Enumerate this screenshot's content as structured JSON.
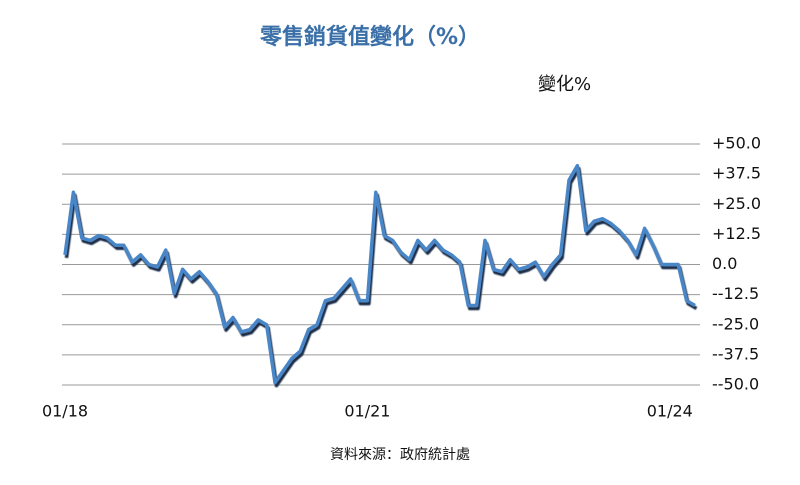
{
  "chart_data": {
    "type": "line",
    "title": "零售銷貨值變化（%）",
    "source": "資料來源：政府統計處",
    "categories": [
      "01/18",
      null,
      null,
      null,
      null,
      null,
      null,
      null,
      null,
      null,
      null,
      null,
      null,
      null,
      null,
      null,
      null,
      null,
      null,
      null,
      null,
      null,
      null,
      null,
      null,
      null,
      null,
      null,
      null,
      null,
      null,
      null,
      null,
      null,
      null,
      null,
      "01/21",
      null,
      null,
      null,
      null,
      null,
      null,
      null,
      null,
      null,
      null,
      null,
      null,
      null,
      null,
      null,
      null,
      null,
      null,
      null,
      null,
      null,
      null,
      null,
      null,
      null,
      null,
      null,
      null,
      null,
      null,
      null,
      null,
      null,
      null,
      null,
      "01/24",
      null,
      null,
      null
    ],
    "series": [
      {
        "name": "變化%",
        "color": "#4a86c8",
        "values": [
          4,
          30,
          11,
          10,
          12,
          11,
          8,
          8,
          1,
          4,
          0,
          -1,
          6,
          -12,
          -2,
          -6,
          -3,
          -7,
          -12,
          -26,
          -22,
          -28,
          -27,
          -23,
          -25,
          -49,
          -44,
          -39,
          -36,
          -27,
          -25,
          -15,
          -14,
          -10,
          -6,
          -15,
          -15,
          30,
          12,
          10,
          5,
          2,
          10,
          6,
          10,
          6,
          4,
          1,
          -17,
          -17,
          10,
          -2,
          -3,
          2,
          -2,
          -1,
          1,
          -5,
          0,
          4,
          35,
          41,
          14,
          18,
          19,
          17,
          14,
          10,
          4,
          15,
          8,
          0,
          0,
          0,
          -15,
          -17
        ]
      }
    ],
    "ylim": [
      -50,
      50
    ],
    "yticks": [
      {
        "value": 50,
        "label": "+50.0"
      },
      {
        "value": 37.5,
        "label": "+37.5"
      },
      {
        "value": 25,
        "label": "+25.0"
      },
      {
        "value": 12.5,
        "label": "+12.5"
      },
      {
        "value": 0,
        "label": "0.0"
      },
      {
        "value": -12.5,
        "label": "--12.5"
      },
      {
        "value": -25,
        "label": "--25.0"
      },
      {
        "value": -37.5,
        "label": "--37.5"
      },
      {
        "value": -50,
        "label": "--50.0"
      }
    ],
    "grid": true,
    "legend": "top-right"
  }
}
